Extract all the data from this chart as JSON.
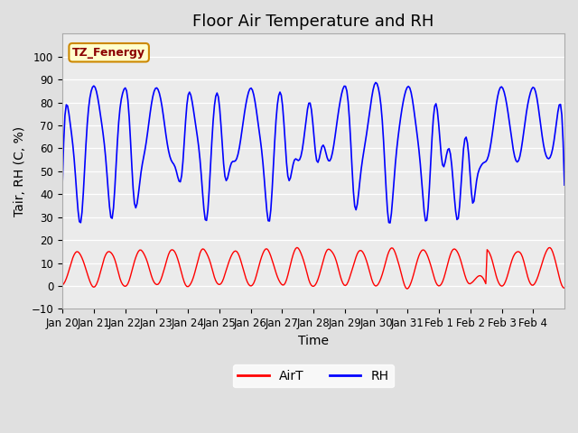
{
  "title": "Floor Air Temperature and RH",
  "xlabel": "Time",
  "ylabel": "Tair, RH (C, %)",
  "ylim": [
    -10,
    110
  ],
  "yticks": [
    -10,
    0,
    10,
    20,
    30,
    40,
    50,
    60,
    70,
    80,
    90,
    100
  ],
  "xtick_labels": [
    "Jan 20",
    "Jan 21",
    "Jan 22",
    "Jan 23",
    "Jan 24",
    "Jan 25",
    "Jan 26",
    "Jan 27",
    "Jan 28",
    "Jan 29",
    "Jan 30",
    "Jan 31",
    "Feb 1",
    "Feb 2",
    "Feb 3",
    "Feb 4"
  ],
  "airt_color": "#FF0000",
  "rh_color": "#0000FF",
  "bg_color": "#E0E0E0",
  "plot_bg_color": "#EBEBEB",
  "legend_label_airt": "AirT",
  "legend_label_rh": "RH",
  "annotation_text": "TZ_Fenergy",
  "annotation_bg": "#FFFFCC",
  "annotation_border": "#CC8800",
  "grid_color": "#FFFFFF",
  "title_fontsize": 13,
  "axis_label_fontsize": 10,
  "tick_fontsize": 8.5
}
